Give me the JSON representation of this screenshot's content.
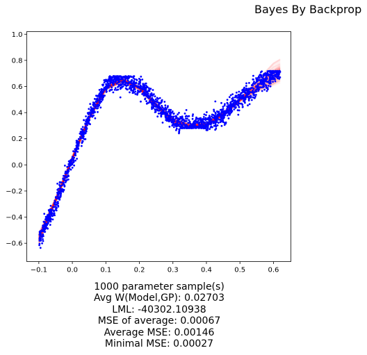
{
  "chart_data": {
    "type": "scatter",
    "title": "Bayes By Backprop",
    "xlabel": "",
    "ylabel": "",
    "xlim": [
      -0.136,
      0.652
    ],
    "ylim": [
      -0.74,
      1.02
    ],
    "xticks": [
      -0.1,
      0.0,
      0.1,
      0.2,
      0.3,
      0.4,
      0.5,
      0.6
    ],
    "xtick_labels": [
      "−0.1",
      "0.0",
      "0.1",
      "0.2",
      "0.3",
      "0.4",
      "0.5",
      "0.6"
    ],
    "yticks": [
      -0.6,
      -0.4,
      -0.2,
      0.0,
      0.2,
      0.4,
      0.6,
      0.8,
      1.0
    ],
    "ytick_labels": [
      "−0.6",
      "−0.4",
      "−0.2",
      "0.0",
      "0.2",
      "0.4",
      "0.6",
      "0.8",
      "1.0"
    ],
    "grid": false,
    "series": [
      {
        "kind": "points",
        "color": "#0000ff",
        "curve": {
          "x": [
            -0.1,
            -0.05,
            0.0,
            0.05,
            0.1,
            0.13,
            0.2,
            0.25,
            0.3,
            0.33,
            0.36,
            0.4,
            0.45,
            0.5,
            0.55,
            0.6,
            0.62
          ],
          "y": [
            -0.58,
            -0.3,
            0.04,
            0.36,
            0.6,
            0.66,
            0.6,
            0.47,
            0.34,
            0.3,
            0.29,
            0.31,
            0.39,
            0.5,
            0.6,
            0.69,
            0.71
          ]
        },
        "y_cap": [
          -0.64,
          0.68
        ],
        "count": 2000
      },
      {
        "kind": "sample-lines",
        "color": "#ff0000",
        "x": [
          -0.1,
          -0.05,
          0.0,
          0.05,
          0.1,
          0.15,
          0.2,
          0.25,
          0.3,
          0.35,
          0.4,
          0.45,
          0.5,
          0.55,
          0.6,
          0.62
        ],
        "y": [
          -0.56,
          -0.27,
          0.05,
          0.36,
          0.59,
          0.65,
          0.59,
          0.46,
          0.34,
          0.3,
          0.31,
          0.39,
          0.5,
          0.6,
          0.69,
          0.72
        ],
        "count": 1000
      }
    ]
  },
  "stats": {
    "line1": "1000 parameter sample(s)",
    "line2": "Avg W(Model,GP): 0.02703",
    "line3": "LML: -40302.10938",
    "line4": "MSE of average: 0.00067",
    "line5": "Average MSE: 0.00146",
    "line6": "Minimal MSE: 0.00027"
  }
}
